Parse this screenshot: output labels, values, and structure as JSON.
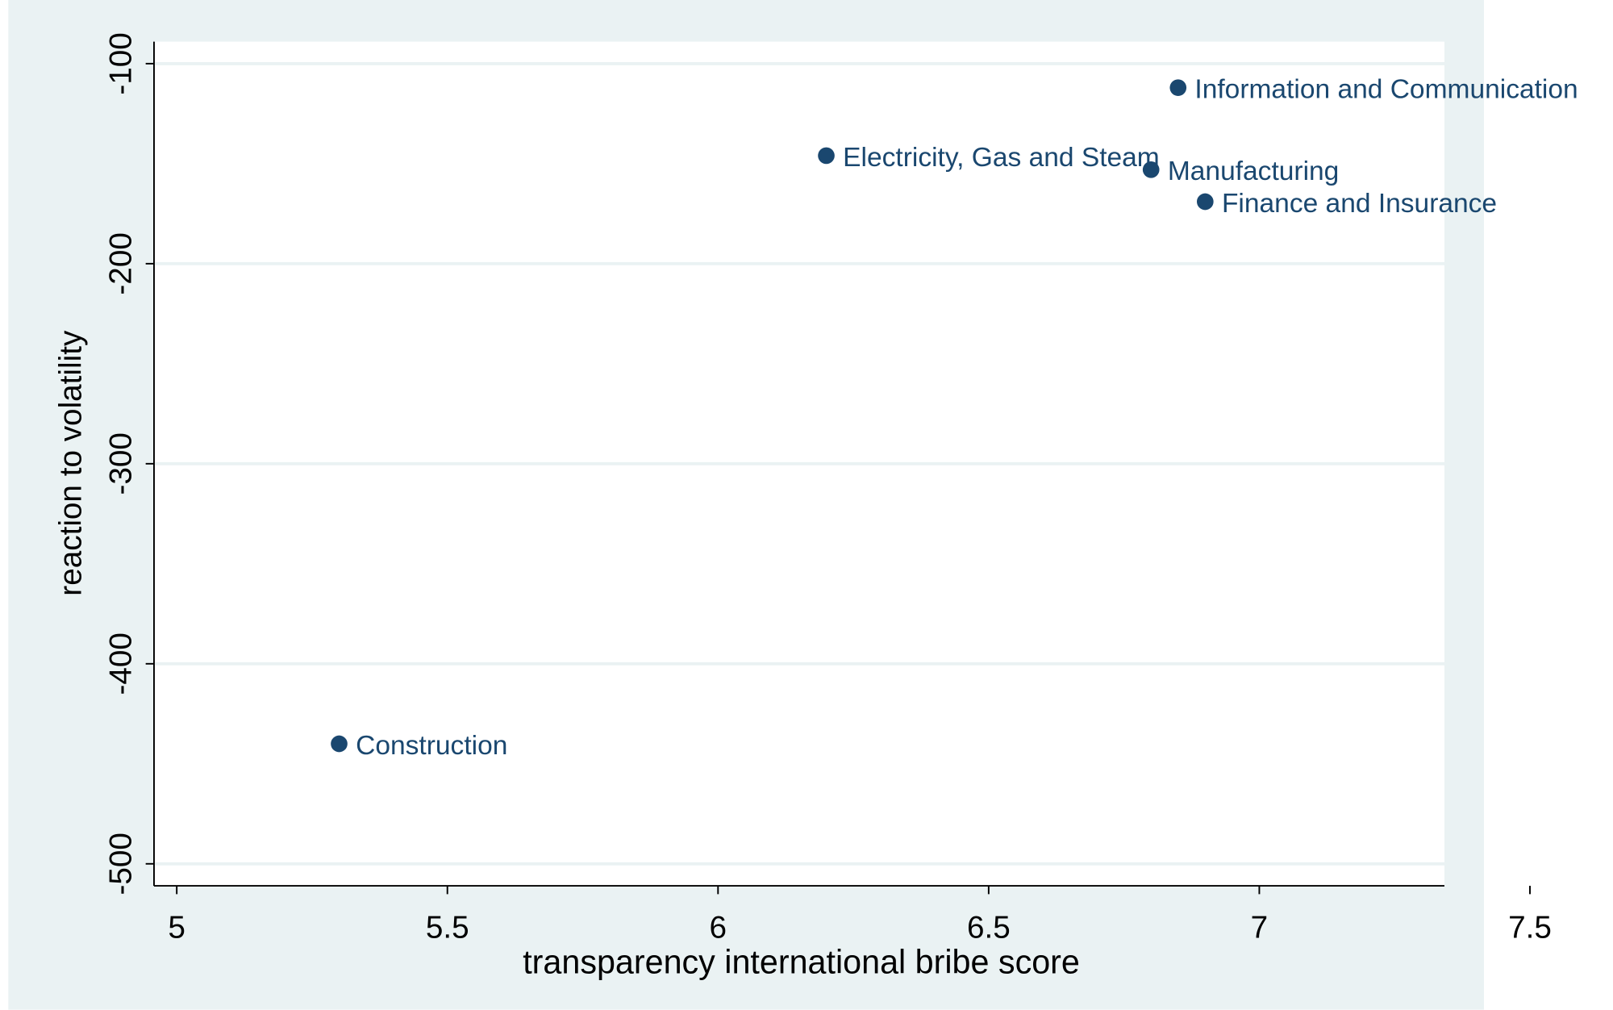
{
  "chart_data": {
    "type": "scatter",
    "x_label": "transparency international bribe score",
    "y_label": "reaction to volatility",
    "x": [
      5.3,
      6.2,
      6.8,
      6.85,
      6.9
    ],
    "values": [
      -440,
      -146,
      -153,
      -112,
      -169
    ],
    "labels": [
      "Construction",
      "Electricity, Gas and Steam",
      "Manufacturing",
      "Information and Communication",
      "Finance and Insurance"
    ],
    "color": "#1a476f",
    "xlim": [
      4.958,
      7.342
    ],
    "xticks": [
      5,
      5.5,
      6,
      6.5,
      7,
      7.5
    ],
    "ylim": [
      -511,
      -89
    ],
    "yticks": [
      -100,
      -200,
      -300,
      -400,
      -500
    ],
    "grid": true
  }
}
